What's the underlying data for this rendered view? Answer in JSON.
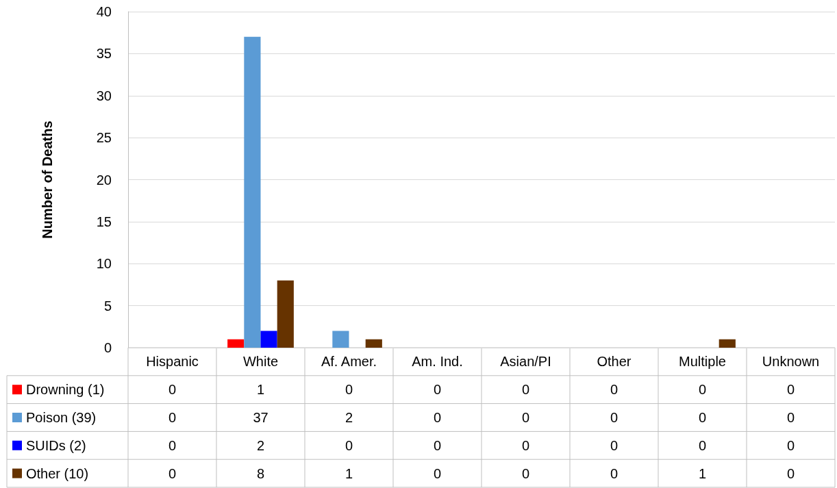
{
  "chart_data": {
    "type": "bar",
    "ylabel": "Number of Deaths",
    "categories": [
      "Hispanic",
      "White",
      "Af. Amer.",
      "Am. Ind.",
      "Asian/PI",
      "Other",
      "Multiple",
      "Unknown"
    ],
    "series": [
      {
        "name": "Drowning (1)",
        "color": "#ff0000",
        "values": [
          0,
          1,
          0,
          0,
          0,
          0,
          0,
          0
        ]
      },
      {
        "name": "Poison (39)",
        "color": "#5b9bd5",
        "values": [
          0,
          37,
          2,
          0,
          0,
          0,
          0,
          0
        ]
      },
      {
        "name": "SUIDs (2)",
        "color": "#0000ff",
        "values": [
          0,
          2,
          0,
          0,
          0,
          0,
          0,
          0
        ]
      },
      {
        "name": "Other (10)",
        "color": "#663300",
        "values": [
          0,
          8,
          1,
          0,
          0,
          0,
          1,
          0
        ]
      }
    ],
    "ylim": [
      0,
      40
    ],
    "yticks": [
      0,
      5,
      10,
      15,
      20,
      25,
      30,
      35,
      40
    ],
    "grid": "y",
    "data_labels": true,
    "legend": "bottom left"
  }
}
